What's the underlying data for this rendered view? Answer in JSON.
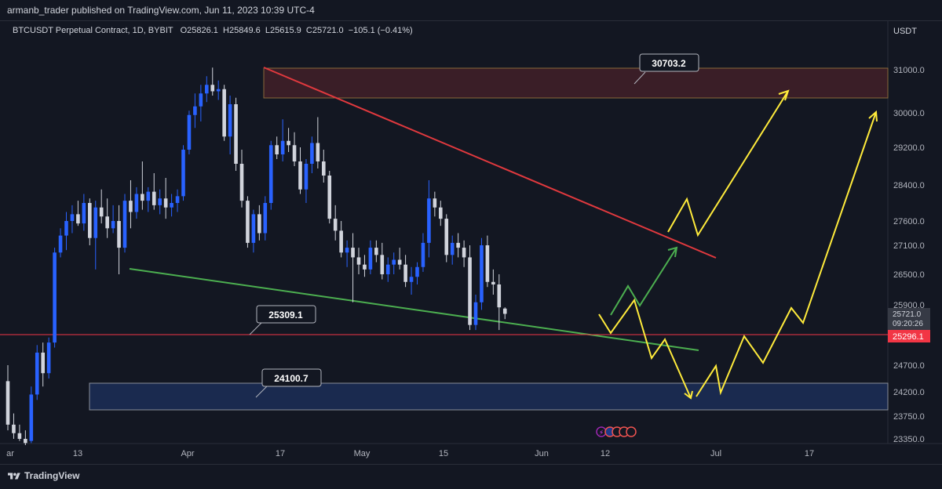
{
  "header": {
    "text": "armanb_trader published on TradingView.com, Jun 11, 2023 10:39 UTC-4"
  },
  "legend": {
    "symbol": "BTCUSDT Perpetual Contract, 1D, BYBIT",
    "o_label": "O",
    "o": "25826.1",
    "h_label": "H",
    "h": "25849.6",
    "l_label": "L",
    "l": "25615.9",
    "c_label": "C",
    "c": "25721.0",
    "change": "−105.1 (−0.41%)"
  },
  "footer": {
    "brand": "TradingView"
  },
  "colors": {
    "background": "#131722",
    "up_candle": "#2962ff",
    "down_candle": "#d1d4dc",
    "resistance_line": "#e0393e",
    "support_line": "#4caf50",
    "projection_yellow": "#ffeb3b",
    "projection_green": "#4caf50",
    "supply_zone": "#3a1e27",
    "demand_zone": "#1a2a4f",
    "price_line": "#f23645"
  },
  "chart_data": {
    "type": "candlestick",
    "price_axis_unit": "USDT",
    "y_ticks": [
      31000.0,
      30000.0,
      29200.0,
      28400.0,
      27600.0,
      27100.0,
      26500.0,
      25900.0,
      24700.0,
      24200.0,
      23750.0,
      23350.0
    ],
    "x_ticks": [
      "ar",
      "13",
      "Apr",
      "17",
      "May",
      "15",
      "Jun",
      "12",
      "Jul",
      "17"
    ],
    "current_price": {
      "value": "25721.0",
      "countdown": "09:20:26"
    },
    "price_line": {
      "value": 25296.1,
      "label": "25296.1"
    },
    "annotations": [
      {
        "label": "30703.2"
      },
      {
        "label": "25309.1"
      },
      {
        "label": "24100.7"
      }
    ],
    "zones": [
      {
        "name": "supply",
        "from": 30300,
        "to": 31050
      },
      {
        "name": "demand",
        "from": 23850,
        "to": 24400
      }
    ],
    "candles": [
      [
        24400,
        24700,
        23500,
        23600
      ],
      [
        23600,
        23800,
        23350,
        23450
      ],
      [
        23450,
        23600,
        23300,
        23350
      ],
      [
        23350,
        23500,
        23200,
        23250
      ],
      [
        23300,
        24300,
        23250,
        24150
      ],
      [
        24150,
        25100,
        24050,
        24950
      ],
      [
        24950,
        25150,
        24300,
        24550
      ],
      [
        24550,
        25250,
        24450,
        25150
      ],
      [
        25150,
        27050,
        25050,
        26950
      ],
      [
        26950,
        27450,
        26850,
        27300
      ],
      [
        27300,
        27800,
        27000,
        27600
      ],
      [
        27600,
        27950,
        27350,
        27750
      ],
      [
        27750,
        28050,
        27500,
        27550
      ],
      [
        27550,
        28200,
        27400,
        28000
      ],
      [
        28000,
        28100,
        27100,
        27250
      ],
      [
        27250,
        28050,
        26600,
        27900
      ],
      [
        27900,
        28300,
        27550,
        27700
      ],
      [
        27700,
        28100,
        27250,
        27450
      ],
      [
        27450,
        27950,
        27350,
        27600
      ],
      [
        27600,
        27950,
        26500,
        27050
      ],
      [
        27050,
        28200,
        26950,
        28050
      ],
      [
        28050,
        28500,
        27450,
        27800
      ],
      [
        27800,
        28350,
        27650,
        28200
      ],
      [
        28200,
        28900,
        27850,
        28050
      ],
      [
        28050,
        28350,
        27800,
        28250
      ],
      [
        28250,
        28650,
        27850,
        27950
      ],
      [
        27950,
        28300,
        27750,
        28100
      ],
      [
        28100,
        28550,
        27650,
        27900
      ],
      [
        27900,
        28200,
        27700,
        28000
      ],
      [
        28000,
        28300,
        27800,
        28150
      ],
      [
        28150,
        29250,
        28050,
        29150
      ],
      [
        29150,
        30050,
        29050,
        29950
      ],
      [
        29950,
        30450,
        29650,
        30150
      ],
      [
        30150,
        30650,
        29800,
        30450
      ],
      [
        30450,
        30850,
        30250,
        30650
      ],
      [
        30650,
        31050,
        30400,
        30500
      ],
      [
        30500,
        30750,
        30300,
        30550
      ],
      [
        30550,
        30650,
        29350,
        29450
      ],
      [
        29450,
        30400,
        29050,
        30200
      ],
      [
        30200,
        30350,
        28700,
        28850
      ],
      [
        28850,
        29150,
        27900,
        28050
      ],
      [
        28050,
        28150,
        27050,
        27150
      ],
      [
        27150,
        27850,
        26950,
        27750
      ],
      [
        27750,
        27950,
        27200,
        27350
      ],
      [
        27350,
        28150,
        27200,
        28000
      ],
      [
        28000,
        29350,
        27850,
        29250
      ],
      [
        29250,
        29450,
        28950,
        29050
      ],
      [
        29050,
        29850,
        28900,
        29350
      ],
      [
        29350,
        29650,
        29100,
        29250
      ],
      [
        29250,
        29550,
        28800,
        28900
      ],
      [
        28900,
        29200,
        28200,
        28300
      ],
      [
        28300,
        28950,
        28000,
        28850
      ],
      [
        28850,
        29450,
        28650,
        29300
      ],
      [
        29300,
        29900,
        28750,
        28900
      ],
      [
        28900,
        29150,
        28450,
        28600
      ],
      [
        28600,
        28700,
        27550,
        27650
      ],
      [
        27650,
        27950,
        27200,
        27400
      ],
      [
        27400,
        27600,
        26850,
        26950
      ],
      [
        26950,
        27200,
        26650,
        27050
      ],
      [
        27050,
        27350,
        25950,
        26850
      ],
      [
        26850,
        27050,
        26500,
        26700
      ],
      [
        26700,
        26900,
        26450,
        26600
      ],
      [
        26600,
        27200,
        26500,
        27050
      ],
      [
        27050,
        27200,
        26750,
        26900
      ],
      [
        26900,
        27150,
        26400,
        26500
      ],
      [
        26500,
        26850,
        26350,
        26700
      ],
      [
        26700,
        26950,
        26500,
        26800
      ],
      [
        26800,
        27050,
        26600,
        26700
      ],
      [
        26700,
        26900,
        26250,
        26350
      ],
      [
        26350,
        26650,
        26100,
        26450
      ],
      [
        26450,
        26750,
        26300,
        26650
      ],
      [
        26650,
        27350,
        26550,
        27150
      ],
      [
        27150,
        28500,
        26850,
        28100
      ],
      [
        28100,
        28250,
        27700,
        27900
      ],
      [
        27900,
        28050,
        27500,
        27650
      ],
      [
        27650,
        27750,
        26750,
        26900
      ],
      [
        26900,
        27300,
        26700,
        27150
      ],
      [
        27150,
        27350,
        26850,
        27050
      ],
      [
        27050,
        27200,
        26650,
        26850
      ],
      [
        26850,
        27100,
        25400,
        25500
      ],
      [
        25500,
        26100,
        25400,
        25950
      ],
      [
        25950,
        27250,
        25800,
        27100
      ],
      [
        27100,
        27300,
        26250,
        26350
      ],
      [
        26350,
        26600,
        26100,
        26300
      ],
      [
        26300,
        26500,
        25400,
        25850
      ],
      [
        25826.1,
        25849.6,
        25615.9,
        25721.0
      ]
    ]
  }
}
